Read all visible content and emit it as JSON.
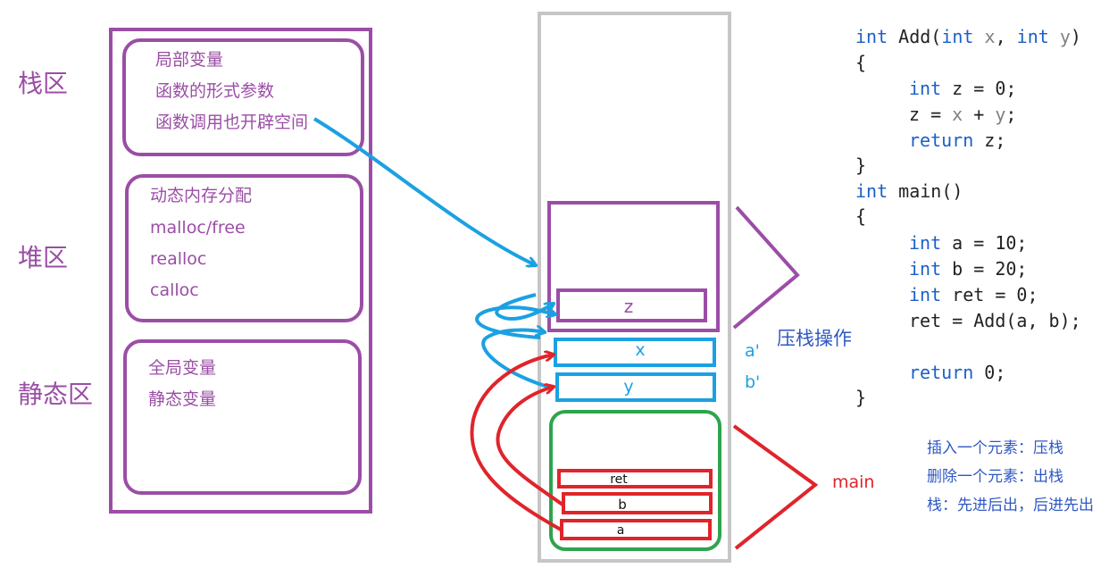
{
  "memory_regions": {
    "stack": {
      "title": "栈区",
      "items": [
        "局部变量",
        "函数的形式参数",
        "函数调用也开辟空间"
      ]
    },
    "heap": {
      "title": "堆区",
      "items": [
        "动态内存分配",
        "malloc/free",
        "realloc",
        "calloc"
      ]
    },
    "static": {
      "title": "静态区",
      "items": [
        "全局变量",
        "静态变量"
      ]
    }
  },
  "stack_frames": {
    "add_frame": {
      "var_z": "z",
      "param_x": "x",
      "param_y": "y",
      "annotation_x": "a'",
      "annotation_y": "b'"
    },
    "push_label": "压栈操作",
    "main_frame": {
      "vars": [
        "ret",
        "b",
        "a"
      ],
      "label": "main"
    }
  },
  "code": {
    "add_sig": {
      "kw1": "int",
      "name": " Add(",
      "kw2": "int",
      "p1": " x",
      "sep": ", ",
      "kw3": "int",
      "p2": " y",
      "close": ")"
    },
    "brace_open_1": "{",
    "add_l1": {
      "kw": "int",
      "rest": " z = 0;"
    },
    "add_l2": {
      "a": "z = ",
      "b": "x",
      "c": " + ",
      "d": "y",
      "e": ";"
    },
    "add_l3": {
      "kw": "return",
      "rest": " z;"
    },
    "brace_close_1": "}",
    "main_sig": {
      "kw": "int",
      "rest": " main()"
    },
    "brace_open_2": "{",
    "main_l1": {
      "kw": "int",
      "rest": " a = 10;"
    },
    "main_l2": {
      "kw": "int",
      "rest": " b = 20;"
    },
    "main_l3": {
      "kw": "int",
      "rest": " ret = 0;"
    },
    "main_l4": "ret = Add(a, b);",
    "main_l5": {
      "kw": "return",
      "rest": " 0;"
    },
    "brace_close_2": "}"
  },
  "notes": [
    "插入一个元素：压栈",
    "删除一个元素：出栈",
    "栈：先进后出，后进先出"
  ],
  "colors": {
    "purple": "#9b4ea6",
    "blue": "#1ba1e2",
    "red": "#e0242b",
    "green": "#2ea44f",
    "gray": "#c6c6c6",
    "code_keyword": "#1a5fc8",
    "note_blue": "#2f58c4"
  }
}
